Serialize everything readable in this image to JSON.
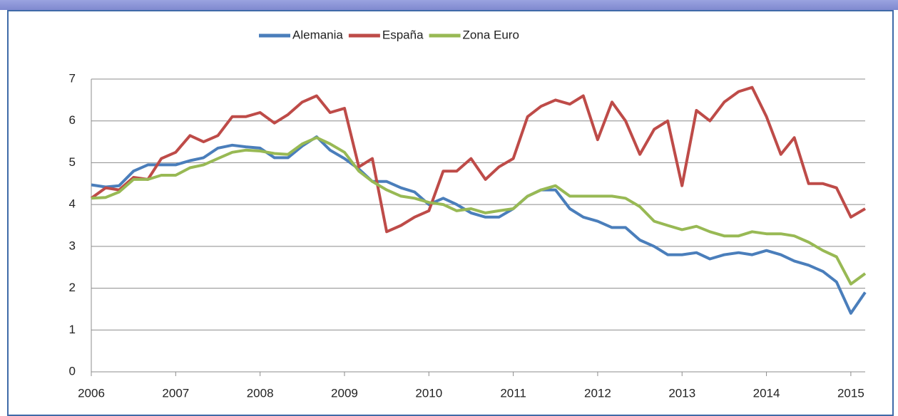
{
  "chart_data": {
    "type": "line",
    "x": [
      2006,
      2006.17,
      2006.33,
      2006.5,
      2006.67,
      2006.83,
      2007,
      2007.17,
      2007.33,
      2007.5,
      2007.67,
      2007.83,
      2008,
      2008.17,
      2008.33,
      2008.5,
      2008.67,
      2008.83,
      2009,
      2009.17,
      2009.33,
      2009.5,
      2009.67,
      2009.83,
      2010,
      2010.17,
      2010.33,
      2010.5,
      2010.67,
      2010.83,
      2011,
      2011.17,
      2011.33,
      2011.5,
      2011.67,
      2011.83,
      2012,
      2012.17,
      2012.33,
      2012.5,
      2012.67,
      2012.83,
      2013,
      2013.17,
      2013.33,
      2013.5,
      2013.67,
      2013.83,
      2014,
      2014.17,
      2014.33,
      2014.5,
      2014.67,
      2014.83,
      2015,
      2015.17
    ],
    "series": [
      {
        "name": "Alemania",
        "color": "#4a7ebb",
        "values": [
          4.47,
          4.42,
          4.45,
          4.8,
          4.95,
          4.95,
          4.95,
          5.05,
          5.12,
          5.35,
          5.42,
          5.38,
          5.35,
          5.12,
          5.12,
          5.4,
          5.62,
          5.3,
          5.1,
          4.85,
          4.55,
          4.55,
          4.4,
          4.3,
          4.0,
          4.15,
          4.0,
          3.8,
          3.7,
          3.7,
          3.9,
          4.2,
          4.35,
          4.35,
          3.9,
          3.7,
          3.6,
          3.45,
          3.45,
          3.15,
          3.0,
          2.8,
          2.8,
          2.85,
          2.7,
          2.8,
          2.85,
          2.8,
          2.9,
          2.8,
          2.65,
          2.55,
          2.4,
          2.15,
          1.4,
          1.9
        ]
      },
      {
        "name": "España",
        "color": "#be4b48",
        "values": [
          4.15,
          4.4,
          4.35,
          4.65,
          4.6,
          5.1,
          5.25,
          5.65,
          5.5,
          5.65,
          6.1,
          6.1,
          6.2,
          5.95,
          6.15,
          6.45,
          6.6,
          6.2,
          6.3,
          4.9,
          5.1,
          3.35,
          3.5,
          3.7,
          3.85,
          4.8,
          4.8,
          5.1,
          4.6,
          4.9,
          5.1,
          6.1,
          6.35,
          6.5,
          6.4,
          6.6,
          5.55,
          6.45,
          6.0,
          5.2,
          5.8,
          6.0,
          4.45,
          6.25,
          6.0,
          6.45,
          6.7,
          6.8,
          6.1,
          5.2,
          5.6,
          4.5,
          4.5,
          4.4,
          3.7,
          3.9
        ]
      },
      {
        "name": "Zona Euro",
        "color": "#98b954",
        "values": [
          4.15,
          4.17,
          4.3,
          4.6,
          4.6,
          4.7,
          4.7,
          4.88,
          4.95,
          5.1,
          5.25,
          5.3,
          5.28,
          5.22,
          5.2,
          5.45,
          5.6,
          5.45,
          5.25,
          4.8,
          4.55,
          4.35,
          4.2,
          4.15,
          4.05,
          4.0,
          3.85,
          3.9,
          3.8,
          3.85,
          3.9,
          4.2,
          4.35,
          4.45,
          4.2,
          4.2,
          4.2,
          4.2,
          4.15,
          3.95,
          3.6,
          3.5,
          3.4,
          3.48,
          3.35,
          3.25,
          3.25,
          3.35,
          3.3,
          3.3,
          3.25,
          3.1,
          2.9,
          2.75,
          2.1,
          2.35
        ]
      }
    ],
    "xlim": [
      2006,
      2015.17
    ],
    "xticks": [
      2006,
      2007,
      2008,
      2009,
      2010,
      2011,
      2012,
      2013,
      2014,
      2015
    ],
    "ylim": [
      0,
      7
    ],
    "yticks": [
      0,
      1,
      2,
      3,
      4,
      5,
      6,
      7
    ],
    "grid": true,
    "legend": "top"
  }
}
